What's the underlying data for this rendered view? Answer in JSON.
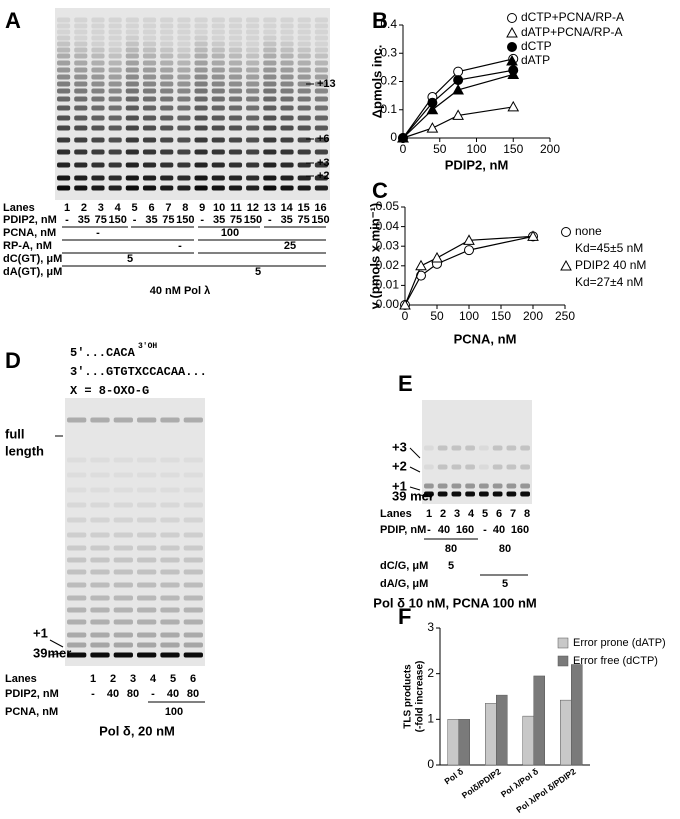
{
  "panel_letters": [
    "A",
    "B",
    "C",
    "D",
    "E",
    "F"
  ],
  "panel_a": {
    "markers": [
      "+13",
      "+6",
      "+3",
      "+2"
    ],
    "rows": [
      {
        "label": "Lanes",
        "cells": [
          1,
          2,
          3,
          4,
          5,
          6,
          7,
          8,
          9,
          10,
          11,
          12,
          13,
          14,
          15,
          16
        ]
      },
      {
        "label": "PDIP2, nM",
        "cells": [
          "-",
          "35",
          "75",
          "150",
          "-",
          "35",
          "75",
          "150",
          "-",
          "35",
          "75",
          "150",
          "-",
          "35",
          "75",
          "150"
        ]
      },
      {
        "label": "PCNA, nM",
        "cells": [
          "-",
          "100"
        ]
      },
      {
        "label": "RP-A, nM",
        "cells": [
          "-",
          "25"
        ]
      },
      {
        "label": "dC(GT), μM",
        "cells": [
          "5"
        ]
      },
      {
        "label": "dA(GT), μM",
        "cells": [
          "5"
        ]
      }
    ],
    "caption": "40 nM Pol λ"
  },
  "chart_data": [
    {
      "type": "line",
      "xlabel": "PDIP2, nM",
      "ylabel": "Δpmols inc.",
      "x": [
        0,
        40,
        75,
        150
      ],
      "xlim": [
        0,
        200
      ],
      "xticks": [
        0,
        50,
        100,
        150,
        200
      ],
      "ylim": [
        0,
        0.4
      ],
      "yticks": [
        0,
        0.1,
        0.2,
        0.3,
        0.4
      ],
      "series": [
        {
          "name": "dCTP+PCNA/RP-A",
          "color": "#000000",
          "marker": "circle",
          "filled": false,
          "values": [
            0,
            0.145,
            0.235,
            0.28
          ]
        },
        {
          "name": "dATP+PCNA/RP-A",
          "color": "#000000",
          "marker": "triangle",
          "filled": false,
          "values": [
            0,
            0.035,
            0.08,
            0.11
          ]
        },
        {
          "name": "dCTP",
          "color": "#000000",
          "marker": "circle",
          "filled": true,
          "values": [
            0,
            0.125,
            0.205,
            0.24
          ]
        },
        {
          "name": "dATP",
          "color": "#000000",
          "marker": "triangle",
          "filled": true,
          "values": [
            0,
            0.1,
            0.17,
            0.225
          ]
        }
      ]
    },
    {
      "type": "line",
      "xlabel": "PCNA, nM",
      "ylabel": "v (pmols x min⁻¹)",
      "x": [
        0,
        25,
        50,
        100,
        200
      ],
      "xlim": [
        0,
        250
      ],
      "xticks": [
        0,
        50,
        100,
        150,
        200,
        250
      ],
      "ylim": [
        0,
        0.05
      ],
      "yticks": [
        {
          "value": 0,
          "label": "0.00"
        },
        {
          "value": 0.01,
          "label": "0.01"
        },
        {
          "value": 0.02,
          "label": "0.02"
        },
        {
          "value": 0.03,
          "label": "0.03"
        },
        {
          "value": 0.04,
          "label": "0.04"
        },
        {
          "value": 0.05,
          "label": "0.05"
        }
      ],
      "series": [
        {
          "name": "none",
          "annotation": "Kd=45±5 nM",
          "color": "#000000",
          "marker": "circle",
          "filled": false,
          "values": [
            0,
            0.015,
            0.021,
            0.028,
            0.035
          ]
        },
        {
          "name": "PDIP2 40 nM",
          "annotation": "Kd=27±4 nM",
          "color": "#000000",
          "marker": "triangle",
          "filled": false,
          "values": [
            0,
            0.02,
            0.024,
            0.033,
            0.035
          ]
        }
      ]
    },
    {
      "type": "bar",
      "ylabel": [
        "TLS products",
        "(-fold increase)"
      ],
      "categories": [
        "Pol δ",
        "Polδ/PDIP2",
        "Pol λ/Pol δ",
        "Pol λ/Pol δ/PDIP2"
      ],
      "ylim": [
        0,
        3
      ],
      "yticks": [
        0,
        1,
        2,
        3
      ],
      "series": [
        {
          "name": "Error prone (dATP)",
          "color": "#c8c8c8",
          "values": [
            1,
            1.35,
            1.07,
            1.42
          ]
        },
        {
          "name": "Error free (dCTP)",
          "color": "#7a7a7a",
          "values": [
            1,
            1.53,
            1.95,
            2.2
          ]
        }
      ]
    }
  ],
  "panel_d": {
    "sequence": [
      "5′...CACA",
      "3′OH",
      "3′...GTGTXCCACAA...",
      "X = 8-OXO-G"
    ],
    "band_labels": [
      "full",
      "length",
      "+1",
      "39mer"
    ],
    "rows": [
      {
        "label": "Lanes",
        "cells": [
          1,
          2,
          3,
          4,
          5,
          6
        ]
      },
      {
        "label": "PDIP2, nM",
        "cells": [
          "-",
          "40",
          "80",
          "-",
          "40",
          "80"
        ]
      },
      {
        "label": "PCNA, nM",
        "cells": [
          "100"
        ]
      }
    ],
    "caption": "Pol δ, 20 nM"
  },
  "panel_e": {
    "band_labels": [
      "+3",
      "+2",
      "+1",
      "39 mer"
    ],
    "rows": [
      {
        "label": "Lanes",
        "cells": [
          1,
          2,
          3,
          4,
          5,
          6,
          7,
          8
        ]
      },
      {
        "label": "PDIP, nM",
        "cells": [
          "-",
          "40",
          "160",
          "-",
          "40",
          "160"
        ]
      },
      {
        "cells": [
          "80",
          "80"
        ]
      },
      {
        "label": "dC/G, μM",
        "cells": [
          "5"
        ]
      },
      {
        "label": "dA/G, μM",
        "cells": [
          "5"
        ]
      }
    ],
    "caption": "Pol δ 10 nM, PCNA 100 nM"
  }
}
